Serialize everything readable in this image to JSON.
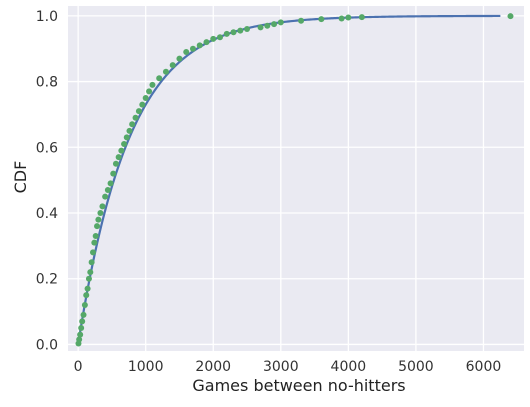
{
  "chart_data": {
    "type": "line",
    "title": "",
    "xlabel": "Games between no-hitters",
    "ylabel": "CDF",
    "xlim": [
      -150,
      6600
    ],
    "ylim": [
      -0.02,
      1.03
    ],
    "xticks": [
      0,
      1000,
      2000,
      3000,
      4000,
      5000,
      6000
    ],
    "yticks": [
      0.0,
      0.2,
      0.4,
      0.6,
      0.8,
      1.0
    ],
    "grid": true,
    "colors": {
      "plot_background": "#eaeaf2",
      "grid": "#ffffff",
      "theoretical_line": "#4c72b0",
      "empirical_points": "#55a868"
    },
    "series": [
      {
        "kind": "theoretical-exponential-cdf-line",
        "tau": 764,
        "x_range": [
          0,
          6250
        ],
        "style": "line"
      },
      {
        "kind": "empirical-cdf-points",
        "style": "markers",
        "points": [
          [
            5,
            0.003
          ],
          [
            15,
            0.015
          ],
          [
            30,
            0.03
          ],
          [
            45,
            0.05
          ],
          [
            60,
            0.07
          ],
          [
            80,
            0.09
          ],
          [
            100,
            0.12
          ],
          [
            120,
            0.15
          ],
          [
            140,
            0.17
          ],
          [
            160,
            0.2
          ],
          [
            180,
            0.22
          ],
          [
            200,
            0.25
          ],
          [
            220,
            0.28
          ],
          [
            240,
            0.31
          ],
          [
            260,
            0.33
          ],
          [
            280,
            0.36
          ],
          [
            300,
            0.38
          ],
          [
            330,
            0.4
          ],
          [
            360,
            0.42
          ],
          [
            400,
            0.45
          ],
          [
            440,
            0.47
          ],
          [
            480,
            0.49
          ],
          [
            520,
            0.52
          ],
          [
            560,
            0.55
          ],
          [
            600,
            0.57
          ],
          [
            640,
            0.59
          ],
          [
            680,
            0.61
          ],
          [
            720,
            0.63
          ],
          [
            760,
            0.65
          ],
          [
            800,
            0.67
          ],
          [
            850,
            0.69
          ],
          [
            900,
            0.71
          ],
          [
            950,
            0.73
          ],
          [
            1000,
            0.75
          ],
          [
            1050,
            0.77
          ],
          [
            1100,
            0.79
          ],
          [
            1200,
            0.81
          ],
          [
            1300,
            0.83
          ],
          [
            1400,
            0.85
          ],
          [
            1500,
            0.87
          ],
          [
            1600,
            0.89
          ],
          [
            1700,
            0.9
          ],
          [
            1800,
            0.91
          ],
          [
            1900,
            0.92
          ],
          [
            2000,
            0.93
          ],
          [
            2100,
            0.935
          ],
          [
            2200,
            0.945
          ],
          [
            2300,
            0.95
          ],
          [
            2400,
            0.955
          ],
          [
            2500,
            0.96
          ],
          [
            2700,
            0.965
          ],
          [
            2800,
            0.97
          ],
          [
            2900,
            0.975
          ],
          [
            3000,
            0.98
          ],
          [
            3300,
            0.985
          ],
          [
            3600,
            0.99
          ],
          [
            3900,
            0.992
          ],
          [
            4000,
            0.995
          ],
          [
            4200,
            0.996
          ],
          [
            6400,
            0.999
          ]
        ]
      }
    ]
  }
}
